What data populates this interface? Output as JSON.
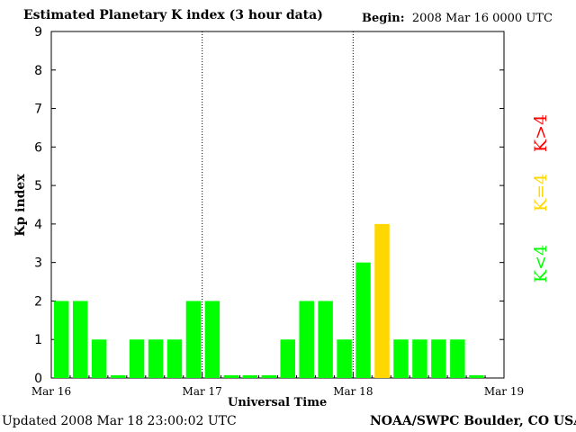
{
  "header": {
    "title": "Estimated Planetary K index (3 hour data)",
    "begin_label": "Begin:",
    "begin_value": "2008 Mar 16 0000 UTC"
  },
  "footer": {
    "updated": "Updated 2008 Mar 18 23:00:02 UTC",
    "credit": "NOAA/SWPC Boulder, CO USA"
  },
  "legend": [
    {
      "label": "K<4",
      "color": "#00ff00"
    },
    {
      "label": "K=4",
      "color": "#ffd700"
    },
    {
      "label": "K>4",
      "color": "#ff0000"
    }
  ],
  "chart_data": {
    "type": "bar",
    "title": "Estimated Planetary K index (3 hour data)",
    "xlabel": "Universal Time",
    "ylabel": "Kp index",
    "ylim": [
      0,
      9
    ],
    "yticks": [
      "0",
      "1",
      "2",
      "3",
      "4",
      "5",
      "6",
      "7",
      "8",
      "9"
    ],
    "xticks": [
      "Mar 16",
      "Mar 17",
      "Mar 18",
      "Mar 19"
    ],
    "grid": false,
    "day_separators": true,
    "values": [
      2,
      2,
      1,
      0.07,
      1,
      1,
      1,
      2,
      2,
      0.07,
      0.07,
      0.07,
      1,
      2,
      2,
      1,
      3,
      4,
      1,
      1,
      1,
      1,
      0.07
    ],
    "color_rule": {
      "below_4": "#00ff00",
      "equal_4": "#ffd700",
      "above_4": "#ff0000"
    }
  }
}
